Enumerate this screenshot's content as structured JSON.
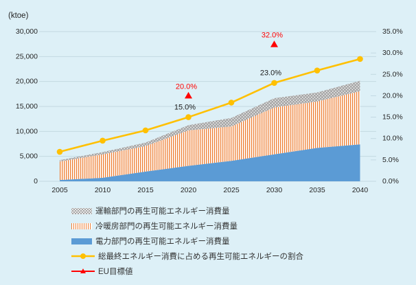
{
  "figure": {
    "background": "#ddf0f7",
    "unit_label": "(ktoe)"
  },
  "chart_data": {
    "type": "area",
    "subtype": "stacked-area-with-percentage-line",
    "x_categories": [
      "2005",
      "2010",
      "2015",
      "2020",
      "2025",
      "2030",
      "2035",
      "2040"
    ],
    "left_axis": {
      "unit": "ktoe",
      "min": 0,
      "max": 30000,
      "step": 5000,
      "tick_labels": [
        "0",
        "5,000",
        "10,000",
        "15,000",
        "20,000",
        "25,000",
        "30,000"
      ]
    },
    "right_axis": {
      "unit": "%",
      "min": 0,
      "max": 35,
      "step": 5,
      "tick_labels": [
        "0.0%",
        "5.0%",
        "10.0%",
        "15.0%",
        "20.0%",
        "25.0%",
        "30.0%",
        "35.0%"
      ]
    },
    "grid": "horizontal",
    "legend_position": "bottom-left",
    "stack_series": [
      {
        "name": "電力部門の再生可能エネルギー消費量",
        "role": "power",
        "fill_style": "solid",
        "color": "#5b9bd5",
        "values": [
          250,
          700,
          1950,
          3100,
          4100,
          5400,
          6700,
          7400
        ]
      },
      {
        "name": "冷暖房部門の再生可能エネルギー消費量",
        "role": "heating-cooling",
        "fill_style": "stripes",
        "color": "#ed7d31",
        "values": [
          3700,
          4700,
          5100,
          7100,
          6900,
          9400,
          9300,
          10650
        ]
      },
      {
        "name": "運輸部門の再生可能エネルギー消費量",
        "role": "transport",
        "fill_style": "dots",
        "color": "#a6a6a6",
        "values": [
          300,
          450,
          700,
          1050,
          1700,
          1850,
          1800,
          2100
        ]
      }
    ],
    "line_series": {
      "name": "総最終エネルギー消費に占める再生可能エネルギーの割合",
      "axis": "right",
      "color": "#ffc000",
      "values": [
        6.9,
        9.5,
        11.9,
        15.0,
        18.4,
        23.0,
        25.9,
        28.6
      ],
      "point_labels": [
        {
          "x": "2020",
          "value": 15.0,
          "text": "15.0%"
        },
        {
          "x": "2030",
          "value": 23.0,
          "text": "23.0%"
        }
      ]
    },
    "target_series": {
      "name": "EU目標値",
      "axis": "right",
      "color": "#ff0000",
      "marker": "triangle",
      "points": [
        {
          "x": "2020",
          "value": 20.0,
          "label": "20.0%"
        },
        {
          "x": "2030",
          "value": 32.0,
          "label": "32.0%"
        }
      ]
    }
  },
  "colors": {
    "grid_line": "#c3d9e2",
    "axis_text": "#262626",
    "annotation_text": "#1a1a1a"
  }
}
